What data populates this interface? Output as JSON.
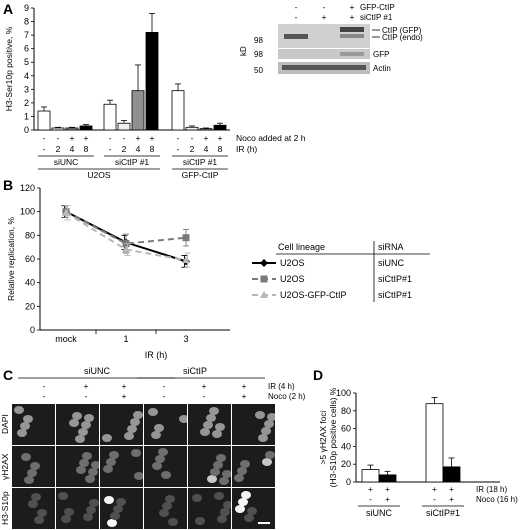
{
  "panels": {
    "A": {
      "letter": "A",
      "chart_data": {
        "type": "bar",
        "ylabel": "H3-Ser10p positive, %",
        "ylim": [
          0,
          9
        ],
        "yticks": [
          "0",
          "1",
          "2",
          "3",
          "4",
          "5",
          "6",
          "7",
          "8",
          "9"
        ],
        "groups": [
          {
            "name": "siUNC",
            "bars": [
              {
                "v": 1.4,
                "e": 0.3
              },
              {
                "v": 0.15,
                "e": 0.05
              },
              {
                "v": 0.15,
                "e": 0.05
              },
              {
                "v": 0.3,
                "e": 0.1
              }
            ]
          },
          {
            "name": "siCtIP #1",
            "bars": [
              {
                "v": 1.9,
                "e": 0.3
              },
              {
                "v": 0.5,
                "e": 0.2
              },
              {
                "v": 2.9,
                "e": 1.9
              },
              {
                "v": 7.2,
                "e": 1.4
              }
            ]
          },
          {
            "name": "siCtIP #1",
            "bars": [
              {
                "v": 2.9,
                "e": 0.5
              },
              {
                "v": 0.2,
                "e": 0.1
              },
              {
                "v": 0.1,
                "e": 0.05
              },
              {
                "v": 0.35,
                "e": 0.15
              }
            ]
          }
        ],
        "noco_row": [
          "-",
          "-",
          "+",
          "+"
        ],
        "ir_row": [
          "-",
          "2",
          "4",
          "8"
        ],
        "noco_label": "Noco added at 2 h",
        "ir_label": "IR (h)",
        "cell_groups": [
          "U2OS",
          "GFP-CtIP"
        ]
      },
      "blot": {
        "header_rows": [
          {
            "label": "GFP-CtIP",
            "signs": [
              "-",
              "-",
              "+"
            ]
          },
          {
            "label": "siCtIP #1",
            "signs": [
              "-",
              "+",
              "+"
            ]
          }
        ],
        "markers": [
          "98",
          "98",
          "50"
        ],
        "kd_label": "kD",
        "bands": [
          "CtIP (GFP)",
          "CtIP (endo)",
          "GFP",
          "Actin"
        ]
      }
    },
    "B": {
      "letter": "B",
      "chart_data": {
        "type": "line",
        "ylabel": "Relative replication, %",
        "xlabel": "IR (h)",
        "ylim": [
          0,
          120
        ],
        "yticks": [
          "0",
          "20",
          "40",
          "60",
          "80",
          "100",
          "120"
        ],
        "categories": [
          "mock",
          "1",
          "3"
        ],
        "series": [
          {
            "name": "U2OS",
            "values": [
              100,
              74,
              58
            ],
            "errors": [
              5,
              6,
              5
            ],
            "color": "#000000",
            "dash": "",
            "marker": "diamond"
          },
          {
            "name": "U2OS",
            "values": [
              100,
              73,
              78
            ],
            "errors": [
              5,
              8,
              7
            ],
            "color": "#7a7a7a",
            "dash": "6,4",
            "marker": "square"
          },
          {
            "name": "U2OS-GFP-CtIP",
            "values": [
              99,
              68,
              59
            ],
            "errors": [
              6,
              5,
              6
            ],
            "color": "#b8b8b8",
            "dash": "6,4",
            "marker": "triangle"
          }
        ],
        "siRNA": [
          "siUNC",
          "siCtIP#1",
          "siCtIP#1"
        ]
      },
      "legend": {
        "col1_header": "Cell lineage",
        "col2_header": "siRNA"
      }
    },
    "C": {
      "letter": "C",
      "groups": [
        "siUNC",
        "siCtIP"
      ],
      "ir_label": "IR (4 h)",
      "noco_label": "Noco (2 h)",
      "ir_signs": [
        "-",
        "+",
        "+",
        "-",
        "+",
        "+"
      ],
      "noco_signs": [
        "-",
        "-",
        "+",
        "-",
        "-",
        "+"
      ],
      "rows": [
        "DAPI",
        "γH2AX",
        "H3-S10p"
      ]
    },
    "D": {
      "letter": "D",
      "chart_data": {
        "type": "bar",
        "ylabel_line1": ">5 γH2AX foci",
        "ylabel_line2": "(H3-S10p positive cells) %",
        "ylim": [
          0,
          100
        ],
        "yticks": [
          "0",
          "20",
          "40",
          "60",
          "80",
          "100"
        ],
        "groups": [
          {
            "name": "siUNC",
            "bars": [
              {
                "v": 14,
                "e": 5,
                "fill": "#ffffff"
              },
              {
                "v": 8,
                "e": 4,
                "fill": "#000000"
              }
            ]
          },
          {
            "name": "siCtIP#1",
            "bars": [
              {
                "v": 88,
                "e": 7,
                "fill": "#ffffff"
              },
              {
                "v": 17,
                "e": 10,
                "fill": "#000000"
              }
            ]
          }
        ],
        "ir_row": [
          "+",
          "+",
          "+",
          "+"
        ],
        "noco_row": [
          "-",
          "+",
          "-",
          "+"
        ],
        "ir_label": "IR (18 h)",
        "noco_label": "Noco (16 h)"
      }
    }
  }
}
